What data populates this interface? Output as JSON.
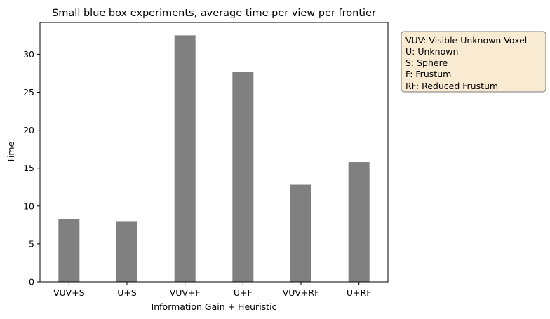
{
  "chart_data": {
    "type": "bar",
    "title": "Small blue box experiments, average time per view per frontier",
    "xlabel": "Information Gain + Heuristic",
    "ylabel": "Time",
    "categories": [
      "VUV+S",
      "U+S",
      "VUV+F",
      "U+F",
      "VUV+RF",
      "U+RF"
    ],
    "values": [
      8.3,
      8.0,
      32.5,
      27.7,
      12.8,
      15.8
    ],
    "ylim": [
      0,
      34.2
    ],
    "yticks": [
      0,
      5,
      10,
      15,
      20,
      25,
      30
    ],
    "bar_color": "#808080",
    "grid": false,
    "legend_placement": "outside right, top",
    "legend_box_color": "#f5deb3",
    "legend_text": [
      "VUV: Visible Unknown Voxel",
      "U: Unknown",
      "S: Sphere",
      "F: Frustum",
      "RF: Reduced Frustum"
    ]
  }
}
